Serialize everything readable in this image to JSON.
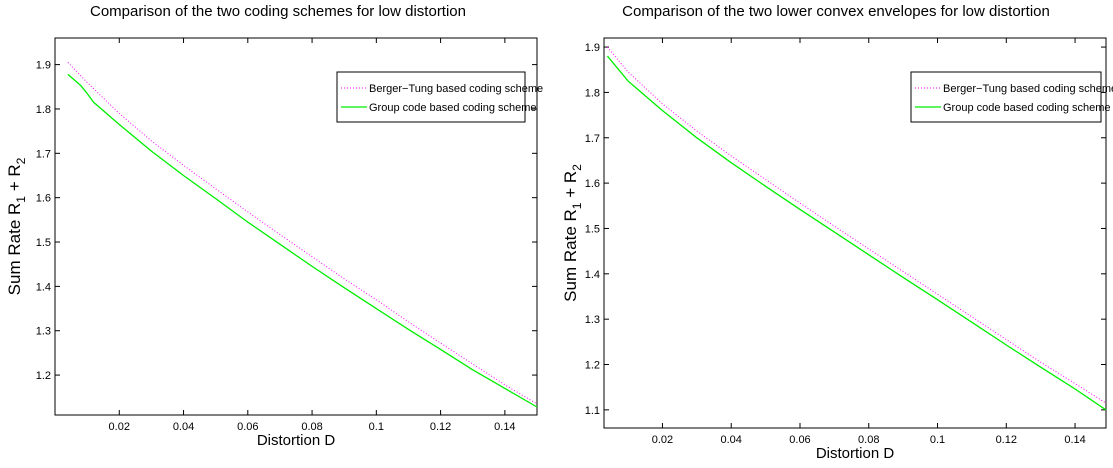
{
  "chart_data": [
    {
      "type": "line",
      "title": "Comparison of the two coding schemes for low distortion",
      "xlabel": "Distortion D",
      "ylabel_main": "Sum Rate  R",
      "ylabel_sub1": "1",
      "ylabel_plus": " + R",
      "ylabel_sub2": "2",
      "xlim": [
        0,
        0.15
      ],
      "ylim": [
        1.11,
        1.96
      ],
      "xticks": [
        0.02,
        0.04,
        0.06,
        0.08,
        0.1,
        0.12,
        0.14
      ],
      "xtick_labels": [
        "0.02",
        "0.04",
        "0.06",
        "0.08",
        "0.1",
        "0.12",
        "0.14"
      ],
      "yticks": [
        1.2,
        1.3,
        1.4,
        1.5,
        1.6,
        1.7,
        1.8,
        1.9
      ],
      "ytick_labels": [
        "1.2",
        "1.3",
        "1.4",
        "1.5",
        "1.6",
        "1.7",
        "1.8",
        "1.9"
      ],
      "legend_position": "top-right",
      "series": [
        {
          "name": "Berger−Tung based coding scheme",
          "color": "#ff00ff",
          "style": "dotted",
          "points": [
            [
              0.004,
              1.905
            ],
            [
              0.01,
              1.86
            ],
            [
              0.02,
              1.79
            ],
            [
              0.03,
              1.728
            ],
            [
              0.04,
              1.673
            ],
            [
              0.05,
              1.62
            ],
            [
              0.06,
              1.568
            ],
            [
              0.07,
              1.517
            ],
            [
              0.08,
              1.467
            ],
            [
              0.09,
              1.417
            ],
            [
              0.1,
              1.37
            ],
            [
              0.11,
              1.32
            ],
            [
              0.12,
              1.272
            ],
            [
              0.13,
              1.225
            ],
            [
              0.14,
              1.178
            ],
            [
              0.15,
              1.135
            ]
          ]
        },
        {
          "name": "Group code based coding scheme",
          "color": "#00ee00",
          "style": "solid",
          "points": [
            [
              0.004,
              1.878
            ],
            [
              0.008,
              1.853
            ],
            [
              0.01,
              1.835
            ],
            [
              0.012,
              1.815
            ],
            [
              0.02,
              1.765
            ],
            [
              0.03,
              1.705
            ],
            [
              0.04,
              1.65
            ],
            [
              0.05,
              1.598
            ],
            [
              0.06,
              1.545
            ],
            [
              0.07,
              1.495
            ],
            [
              0.08,
              1.445
            ],
            [
              0.09,
              1.397
            ],
            [
              0.1,
              1.35
            ],
            [
              0.11,
              1.303
            ],
            [
              0.12,
              1.258
            ],
            [
              0.13,
              1.212
            ],
            [
              0.14,
              1.17
            ],
            [
              0.15,
              1.128
            ]
          ]
        }
      ]
    },
    {
      "type": "line",
      "title": "Comparison of the two lower convex envelopes for low distortion",
      "xlabel": "Distortion D",
      "ylabel_main": "Sum Rate  R",
      "ylabel_sub1": "1",
      "ylabel_plus": " + R",
      "ylabel_sub2": "2",
      "xlim": [
        0.003,
        0.149
      ],
      "ylim": [
        1.06,
        1.92
      ],
      "xticks": [
        0.02,
        0.04,
        0.06,
        0.08,
        0.1,
        0.12,
        0.14
      ],
      "xtick_labels": [
        "0.02",
        "0.04",
        "0.06",
        "0.08",
        "0.1",
        "0.12",
        "0.14"
      ],
      "yticks": [
        1.1,
        1.2,
        1.3,
        1.4,
        1.5,
        1.6,
        1.7,
        1.8,
        1.9
      ],
      "ytick_labels": [
        "1.1",
        "1.2",
        "1.3",
        "1.4",
        "1.5",
        "1.6",
        "1.7",
        "1.8",
        "1.9"
      ],
      "legend_position": "top-right",
      "series": [
        {
          "name": "Berger−Tung based coding scheme",
          "color": "#ff00ff",
          "style": "dotted",
          "points": [
            [
              0.004,
              1.9
            ],
            [
              0.01,
              1.845
            ],
            [
              0.02,
              1.775
            ],
            [
              0.03,
              1.715
            ],
            [
              0.04,
              1.66
            ],
            [
              0.05,
              1.608
            ],
            [
              0.06,
              1.556
            ],
            [
              0.07,
              1.505
            ],
            [
              0.08,
              1.455
            ],
            [
              0.09,
              1.405
            ],
            [
              0.1,
              1.355
            ],
            [
              0.11,
              1.305
            ],
            [
              0.12,
              1.255
            ],
            [
              0.13,
              1.205
            ],
            [
              0.14,
              1.158
            ],
            [
              0.149,
              1.115
            ]
          ]
        },
        {
          "name": "Group code based coding scheme",
          "color": "#00ee00",
          "style": "solid",
          "points": [
            [
              0.004,
              1.88
            ],
            [
              0.01,
              1.825
            ],
            [
              0.02,
              1.76
            ],
            [
              0.03,
              1.7
            ],
            [
              0.04,
              1.645
            ],
            [
              0.05,
              1.593
            ],
            [
              0.06,
              1.542
            ],
            [
              0.07,
              1.492
            ],
            [
              0.08,
              1.442
            ],
            [
              0.09,
              1.392
            ],
            [
              0.1,
              1.343
            ],
            [
              0.11,
              1.293
            ],
            [
              0.12,
              1.243
            ],
            [
              0.13,
              1.194
            ],
            [
              0.14,
              1.146
            ],
            [
              0.149,
              1.1
            ]
          ]
        }
      ]
    }
  ]
}
